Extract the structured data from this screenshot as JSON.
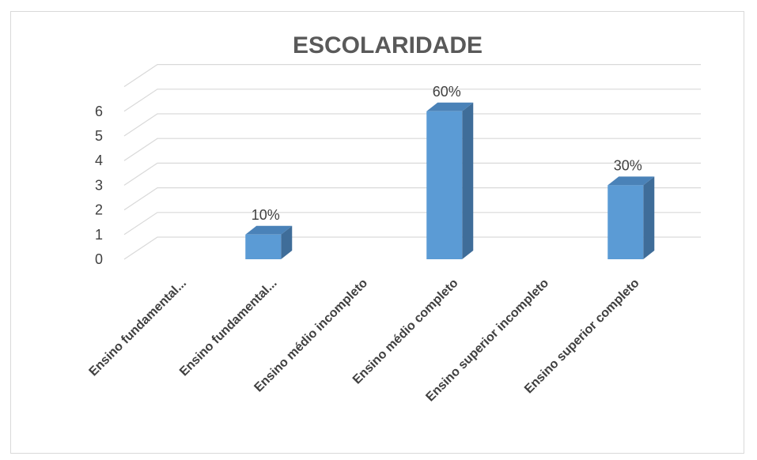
{
  "chart_data": {
    "type": "bar",
    "title": "ESCOLARIDADE",
    "categories": [
      "Ensino fundamental...",
      "Ensino fundamental...",
      "Ensino médio incompleto",
      "Ensino médio completo",
      "Ensino superior incompleto",
      "Ensino superior completo"
    ],
    "values": [
      0,
      1,
      0,
      6,
      0,
      3
    ],
    "data_labels": [
      "",
      "10%",
      "",
      "60%",
      "",
      "30%"
    ],
    "yticks": [
      "0",
      "1",
      "2",
      "3",
      "4",
      "5",
      "6"
    ],
    "ylim": [
      0,
      6
    ],
    "grid": true,
    "three_d": true,
    "colors": {
      "bar_front": "#5b9bd5",
      "bar_side": "#3f6d99",
      "bar_top": "#4a82b8",
      "grid": "#d9d9d9"
    }
  }
}
